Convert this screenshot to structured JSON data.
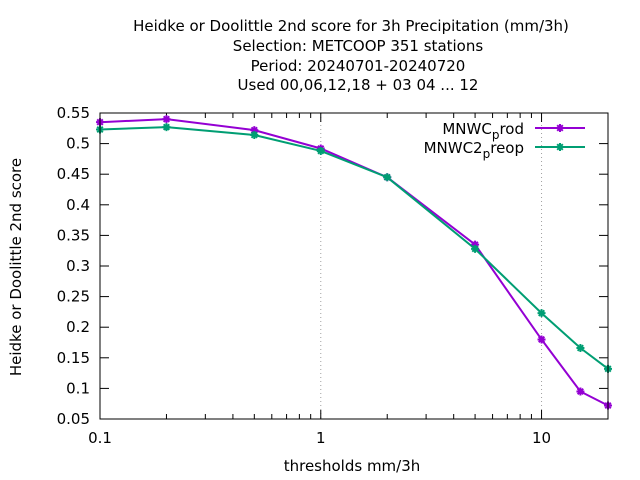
{
  "chart_data": {
    "type": "line",
    "title_lines": [
      "Heidke or Doolittle 2nd score  for 3h Precipitation (mm/3h)",
      "Selection: METCOOP    351 stations",
      "Period: 20240701-20240720",
      "Used  00,06,12,18 + 03 04 ... 12"
    ],
    "xlabel": "thresholds mm/3h",
    "ylabel": "Heidke or Doolittle 2nd score",
    "x_scale": "log",
    "xlim": [
      0.1,
      20
    ],
    "ylim": [
      0.05,
      0.55
    ],
    "x_ticks": [
      0.1,
      1,
      10
    ],
    "x_tick_labels": [
      "0.1",
      "1",
      "10"
    ],
    "y_ticks": [
      0.05,
      0.1,
      0.15,
      0.2,
      0.25,
      0.3,
      0.35,
      0.4,
      0.45,
      0.5,
      0.55
    ],
    "y_tick_labels": [
      "0.05",
      "0.1",
      "0.15",
      "0.2",
      "0.25",
      "0.3",
      "0.35",
      "0.4",
      "0.45",
      "0.5",
      "0.55"
    ],
    "grid": "vertical at major log decades",
    "legend_position": "top-right",
    "series": [
      {
        "legend_main": "MNWC",
        "legend_sub": "p",
        "legend_tail": "rod",
        "color": "#9400d3",
        "x": [
          0.1,
          0.2,
          0.5,
          1,
          2,
          5,
          10,
          15,
          20
        ],
        "y": [
          0.535,
          0.54,
          0.522,
          0.492,
          0.445,
          0.335,
          0.18,
          0.095,
          0.072
        ]
      },
      {
        "legend_main": "MNWC2",
        "legend_sub": "p",
        "legend_tail": "reop",
        "color": "#009e73",
        "x": [
          0.1,
          0.2,
          0.5,
          1,
          2,
          5,
          10,
          15,
          20
        ],
        "y": [
          0.523,
          0.527,
          0.514,
          0.488,
          0.445,
          0.328,
          0.223,
          0.166,
          0.132
        ]
      }
    ]
  }
}
